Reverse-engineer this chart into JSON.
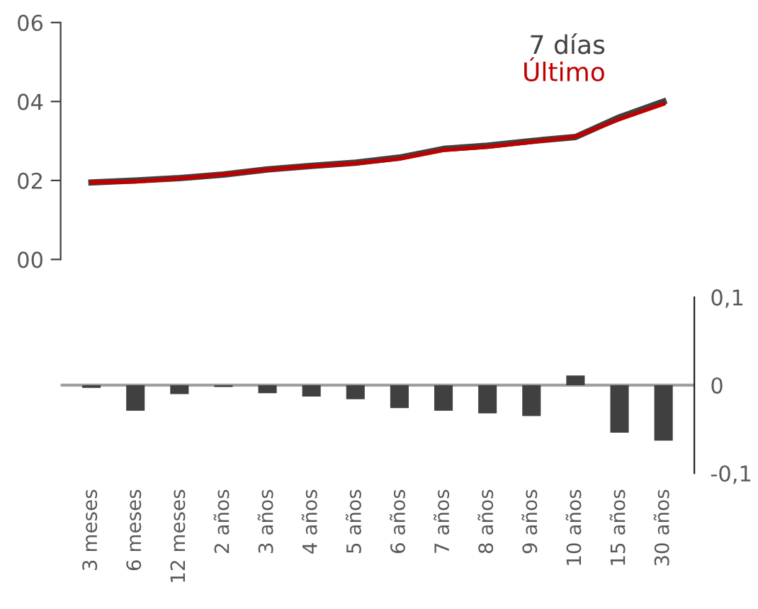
{
  "chart_data": [
    {
      "type": "line",
      "categories": [
        null,
        null,
        null,
        null,
        null,
        null,
        null,
        null,
        null,
        null,
        null,
        null,
        null,
        null
      ],
      "series": [
        {
          "name": "7 días",
          "color": "#404040",
          "values": [
            1.95,
            2.0,
            2.06,
            2.15,
            2.28,
            2.37,
            2.45,
            2.58,
            2.8,
            2.88,
            3.0,
            3.1,
            3.6,
            4.0
          ]
        },
        {
          "name": "Último",
          "color": "#c00000",
          "values": [
            1.95,
            1.97,
            2.05,
            2.15,
            2.27,
            2.36,
            2.43,
            2.55,
            2.77,
            2.85,
            2.97,
            3.11,
            3.55,
            3.94
          ]
        }
      ],
      "ylim": [
        0,
        6
      ],
      "yticks": [
        {
          "value": 0,
          "label": "00"
        },
        {
          "value": 2,
          "label": "02"
        },
        {
          "value": 4,
          "label": "04"
        },
        {
          "value": 6,
          "label": "06"
        }
      ],
      "tick_labels": "y",
      "legend": "top right",
      "grid": false,
      "marker": "none",
      "line_style": "solid"
    },
    {
      "type": "bar",
      "categories": [
        "3 meses",
        "6 meses",
        "12 meses",
        "2 años",
        "3 años",
        "4 años",
        "5 años",
        "6 años",
        "7 años",
        "8 años",
        "9 años",
        "10 años",
        "15 años",
        "30 años"
      ],
      "values": [
        -0.003,
        -0.029,
        -0.01,
        -0.002,
        -0.009,
        -0.013,
        -0.016,
        -0.026,
        -0.029,
        -0.032,
        -0.035,
        0.011,
        -0.054,
        -0.063
      ],
      "color": "#404040",
      "ylim": [
        -0.1,
        0.1
      ],
      "yticks": [
        {
          "value": 0.1,
          "label": "0,1"
        },
        {
          "value": 0,
          "label": "0"
        },
        {
          "value": -0.1,
          "label": "-0,1"
        }
      ],
      "ref_lines": [
        {
          "axis": "y",
          "value": 0,
          "color": "#a0a0a0"
        }
      ]
    }
  ]
}
